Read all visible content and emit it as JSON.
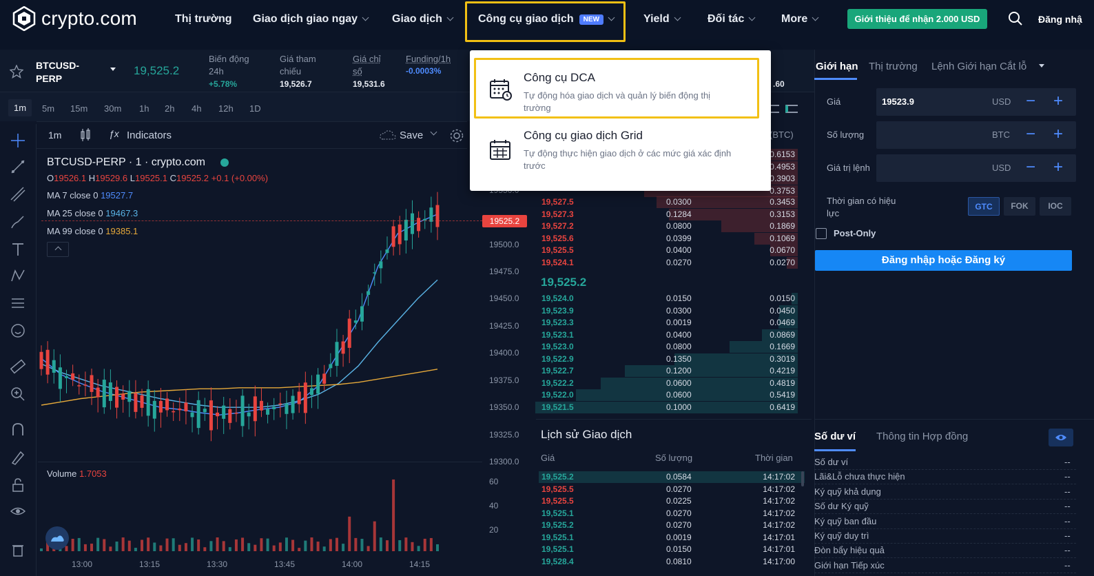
{
  "nav": {
    "logo_text": "crypto.com",
    "items": [
      "Thị trường",
      "Giao dịch giao ngay",
      "Giao dịch",
      "Công cụ giao dịch",
      "Yield",
      "Đối tác",
      "More"
    ],
    "new_badge": "NEW",
    "promo": "Giới thiệu để nhận 2.000 USD",
    "login": "Đăng nhậ"
  },
  "ticker": {
    "symbol": "BTCUSD-PERP",
    "price": "19,525.2",
    "change_label": "Biến động 24h",
    "change_value": "+5.78%",
    "ref_label": "Giá tham chiếu",
    "ref_value": "19,526.7",
    "index_label": "Giá chỉ số",
    "index_value": "19,531.6",
    "funding_label": "Funding/1h",
    "funding_value": "-0.0003%",
    "edge_value": ".60"
  },
  "timeframes": [
    "1m",
    "5m",
    "15m",
    "30m",
    "1h",
    "2h",
    "4h",
    "12h",
    "1D"
  ],
  "chart_toolbar": {
    "interval": "1m",
    "indicators": "Indicators",
    "save": "Save"
  },
  "chart_legend": {
    "title": "BTCUSD-PERP · 1 · crypto.com",
    "ohlc_o_label": "O",
    "ohlc_o": "19526.1",
    "ohlc_h_label": "H",
    "ohlc_h": "19529.6",
    "ohlc_l_label": "L",
    "ohlc_l": "19525.1",
    "ohlc_c_label": "C",
    "ohlc_c": "19525.2",
    "ohlc_change": "+0.1 (+0.00%)",
    "ma7_label": "MA 7 close 0",
    "ma7": "19527.7",
    "ma25_label": "MA 25 close 0",
    "ma25": "19467.3",
    "ma99_label": "MA 99 close 0",
    "ma99": "19385.1",
    "volume_label": "Volume",
    "volume": "1.7053",
    "last_price_tag": "19525.2"
  },
  "chart_data": {
    "type": "line",
    "price_axis": [
      "19550.0",
      "19500.0",
      "19475.0",
      "19450.0",
      "19425.0",
      "19400.0",
      "19375.0",
      "19350.0",
      "19325.0",
      "19300.0"
    ],
    "volume_axis": [
      "60",
      "40",
      "20"
    ],
    "time_axis": [
      "13:00",
      "13:15",
      "13:30",
      "13:45",
      "14:00",
      "14:15"
    ],
    "ylim": [
      19300,
      19560
    ],
    "series": [
      {
        "name": "MA 7 close 0",
        "color": "#4f8cff",
        "values": [
          19395,
          19380,
          19372,
          19365,
          19360,
          19355,
          19350,
          19348,
          19345,
          19343,
          19345,
          19348,
          19350,
          19355,
          19370,
          19400,
          19430,
          19480,
          19510,
          19520,
          19527.7
        ]
      },
      {
        "name": "MA 25 close 0",
        "color": "#5ab4e6",
        "values": [
          19390,
          19382,
          19376,
          19370,
          19366,
          19362,
          19358,
          19355,
          19352,
          19350,
          19350,
          19350,
          19352,
          19356,
          19362,
          19372,
          19388,
          19410,
          19430,
          19450,
          19467.3
        ]
      },
      {
        "name": "MA 99 close 0",
        "color": "#e6a93a",
        "values": [
          19352,
          19355,
          19358,
          19360,
          19362,
          19364,
          19365,
          19366,
          19367,
          19367,
          19368,
          19368,
          19368,
          19369,
          19370,
          19371,
          19373,
          19376,
          19379,
          19382,
          19385.1
        ]
      }
    ]
  },
  "orderbook": {
    "header_unit": "(BTC)",
    "asks": [
      {
        "price": "",
        "qty": "",
        "total": "0.6153"
      },
      {
        "price": "",
        "qty": "",
        "total": "0.4953"
      },
      {
        "price": "",
        "qty": "",
        "total": "0.3903"
      },
      {
        "price": "",
        "qty": "",
        "total": "0.3753"
      },
      {
        "price": "19,527.5",
        "qty": "0.0300",
        "total": "0.3453"
      },
      {
        "price": "19,527.3",
        "qty": "0.1284",
        "total": "0.3153"
      },
      {
        "price": "19,527.2",
        "qty": "0.0800",
        "total": "0.1869"
      },
      {
        "price": "19,525.6",
        "qty": "0.0399",
        "total": "0.1069"
      },
      {
        "price": "19,525.5",
        "qty": "0.0400",
        "total": "0.0670"
      },
      {
        "price": "19,524.1",
        "qty": "0.0270",
        "total": "0.0270"
      }
    ],
    "mid": "19,525.2",
    "bids": [
      {
        "price": "19,524.0",
        "qty": "0.0150",
        "total": "0.0150"
      },
      {
        "price": "19,523.9",
        "qty": "0.0300",
        "total": "0.0450"
      },
      {
        "price": "19,523.3",
        "qty": "0.0019",
        "total": "0.0469"
      },
      {
        "price": "19,523.1",
        "qty": "0.0400",
        "total": "0.0869"
      },
      {
        "price": "19,523.0",
        "qty": "0.0800",
        "total": "0.1669"
      },
      {
        "price": "19,522.9",
        "qty": "0.1350",
        "total": "0.3019"
      },
      {
        "price": "19,522.7",
        "qty": "0.1200",
        "total": "0.4219"
      },
      {
        "price": "19,522.2",
        "qty": "0.0600",
        "total": "0.4819"
      },
      {
        "price": "19,522.0",
        "qty": "0.0600",
        "total": "0.5419"
      },
      {
        "price": "19,521.5",
        "qty": "0.1000",
        "total": "0.6419"
      }
    ]
  },
  "trades": {
    "title": "Lịch sử Giao dịch",
    "headers": [
      "Giá",
      "Số lượng",
      "Thời gian"
    ],
    "rows": [
      {
        "price": "19,525.2",
        "qty": "0.0584",
        "time": "14:17:02",
        "side": "buy"
      },
      {
        "price": "19,525.5",
        "qty": "0.0270",
        "time": "14:17:02",
        "side": "sell"
      },
      {
        "price": "19,525.5",
        "qty": "0.0225",
        "time": "14:17:02",
        "side": "sell"
      },
      {
        "price": "19,525.1",
        "qty": "0.0270",
        "time": "14:17:02",
        "side": "buy"
      },
      {
        "price": "19,525.2",
        "qty": "0.0270",
        "time": "14:17:02",
        "side": "buy"
      },
      {
        "price": "19,525.1",
        "qty": "0.0019",
        "time": "14:17:01",
        "side": "buy"
      },
      {
        "price": "19,525.1",
        "qty": "0.0150",
        "time": "14:17:01",
        "side": "buy"
      },
      {
        "price": "19,528.4",
        "qty": "0.0810",
        "time": "14:17:00",
        "side": "buy"
      }
    ]
  },
  "order_form": {
    "tabs": [
      "Giới hạn",
      "Thị trường",
      "Lệnh Giới hạn Cắt lỗ"
    ],
    "price_label": "Giá",
    "price_value": "19523.9",
    "price_unit": "USD",
    "qty_label": "Số lượng",
    "qty_unit": "BTC",
    "value_label": "Giá trị lệnh",
    "value_unit": "USD",
    "tif_label": "Thời gian có hiệu lực",
    "tif_options": [
      "GTC",
      "FOK",
      "IOC"
    ],
    "postonly": "Post-Only",
    "submit": "Đăng nhập hoặc Đăng ký"
  },
  "wallet": {
    "tabs": [
      "Số dư ví",
      "Thông tin Hợp đồng"
    ],
    "rows": [
      {
        "label": "Số dư ví",
        "value": "--"
      },
      {
        "label": "Lãi&Lỗ chưa thực hiện",
        "value": "--"
      },
      {
        "label": "Ký quỹ khả dụng",
        "value": "--"
      },
      {
        "label": "Số dư Ký quỹ",
        "value": "--"
      },
      {
        "label": "Ký quỹ ban đầu",
        "value": "--"
      },
      {
        "label": "Ký quỹ duy trì",
        "value": "--"
      },
      {
        "label": "Đòn bẩy hiệu quả",
        "value": "--"
      },
      {
        "label": "Giới hạn Tiếp xúc",
        "value": "--"
      }
    ]
  },
  "dropdown": {
    "items": [
      {
        "title": "Công cụ DCA",
        "desc": "Tự động hóa giao dịch và quản lý biến động thị trường"
      },
      {
        "title": "Công cụ giao dịch Grid",
        "desc": "Tự động thực hiện giao dịch ở các mức giá xác định trước"
      }
    ]
  },
  "colors": {
    "highlight": "#f2c014",
    "up": "#26a69a",
    "down": "#e8443f",
    "accent": "#4f8cff",
    "promo": "#19a67a"
  }
}
